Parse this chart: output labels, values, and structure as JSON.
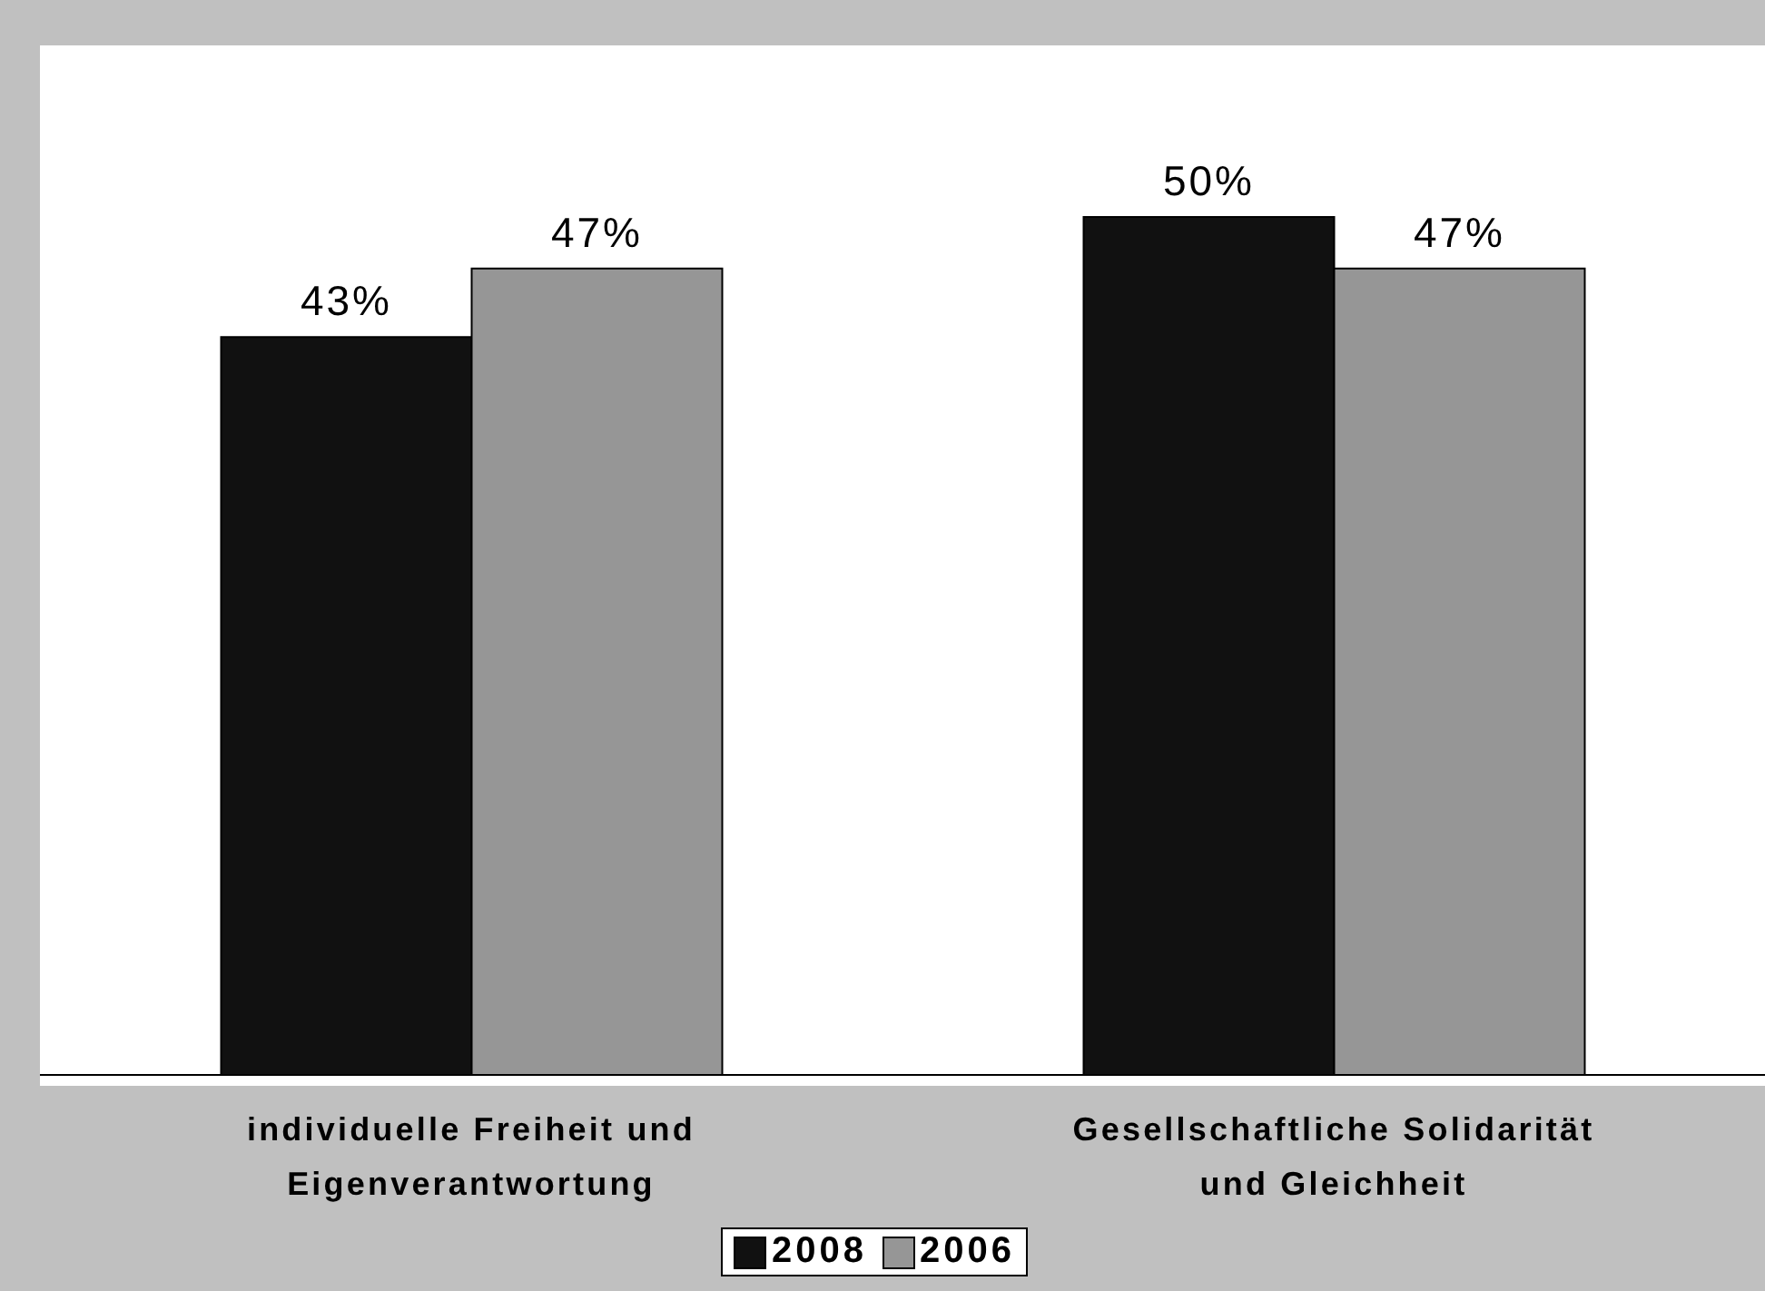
{
  "chart_data": {
    "type": "bar",
    "categories": [
      "individuelle Freiheit und Eigenverantwortung",
      "Gesellschaftliche Solidarität und Gleichheit"
    ],
    "series": [
      {
        "name": "2008",
        "color": "#111111",
        "values": [
          43,
          50
        ],
        "value_labels": [
          "43%",
          "50%"
        ]
      },
      {
        "name": "2006",
        "color": "#969696",
        "values": [
          47,
          47
        ],
        "value_labels": [
          "47%",
          "47%"
        ]
      }
    ],
    "legend": "bottom"
  }
}
